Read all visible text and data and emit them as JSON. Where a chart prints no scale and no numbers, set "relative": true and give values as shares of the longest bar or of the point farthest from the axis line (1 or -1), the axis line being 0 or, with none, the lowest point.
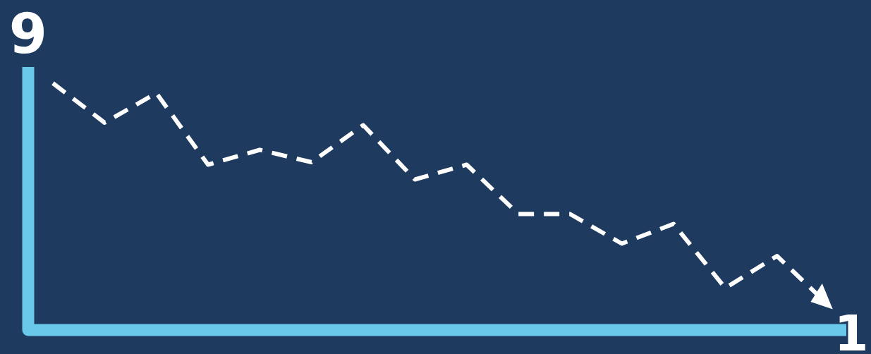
{
  "chart_data": {
    "type": "line",
    "relative": true,
    "categories": [
      null,
      null,
      null,
      null,
      null,
      null,
      null,
      null,
      null,
      null,
      null,
      null,
      null,
      null,
      null,
      null
    ],
    "series": [
      {
        "color": "#ffffff",
        "values": [
          1,
          0.84,
          0.96,
          0.67,
          0.73,
          0.68,
          0.83,
          0.61,
          0.67,
          0.47,
          0.47,
          0.35,
          0.43,
          0.17,
          0.3,
          0.1
        ]
      }
    ],
    "line_style": "dashed",
    "marker": "none",
    "annotations": [
      "9",
      "1"
    ]
  }
}
